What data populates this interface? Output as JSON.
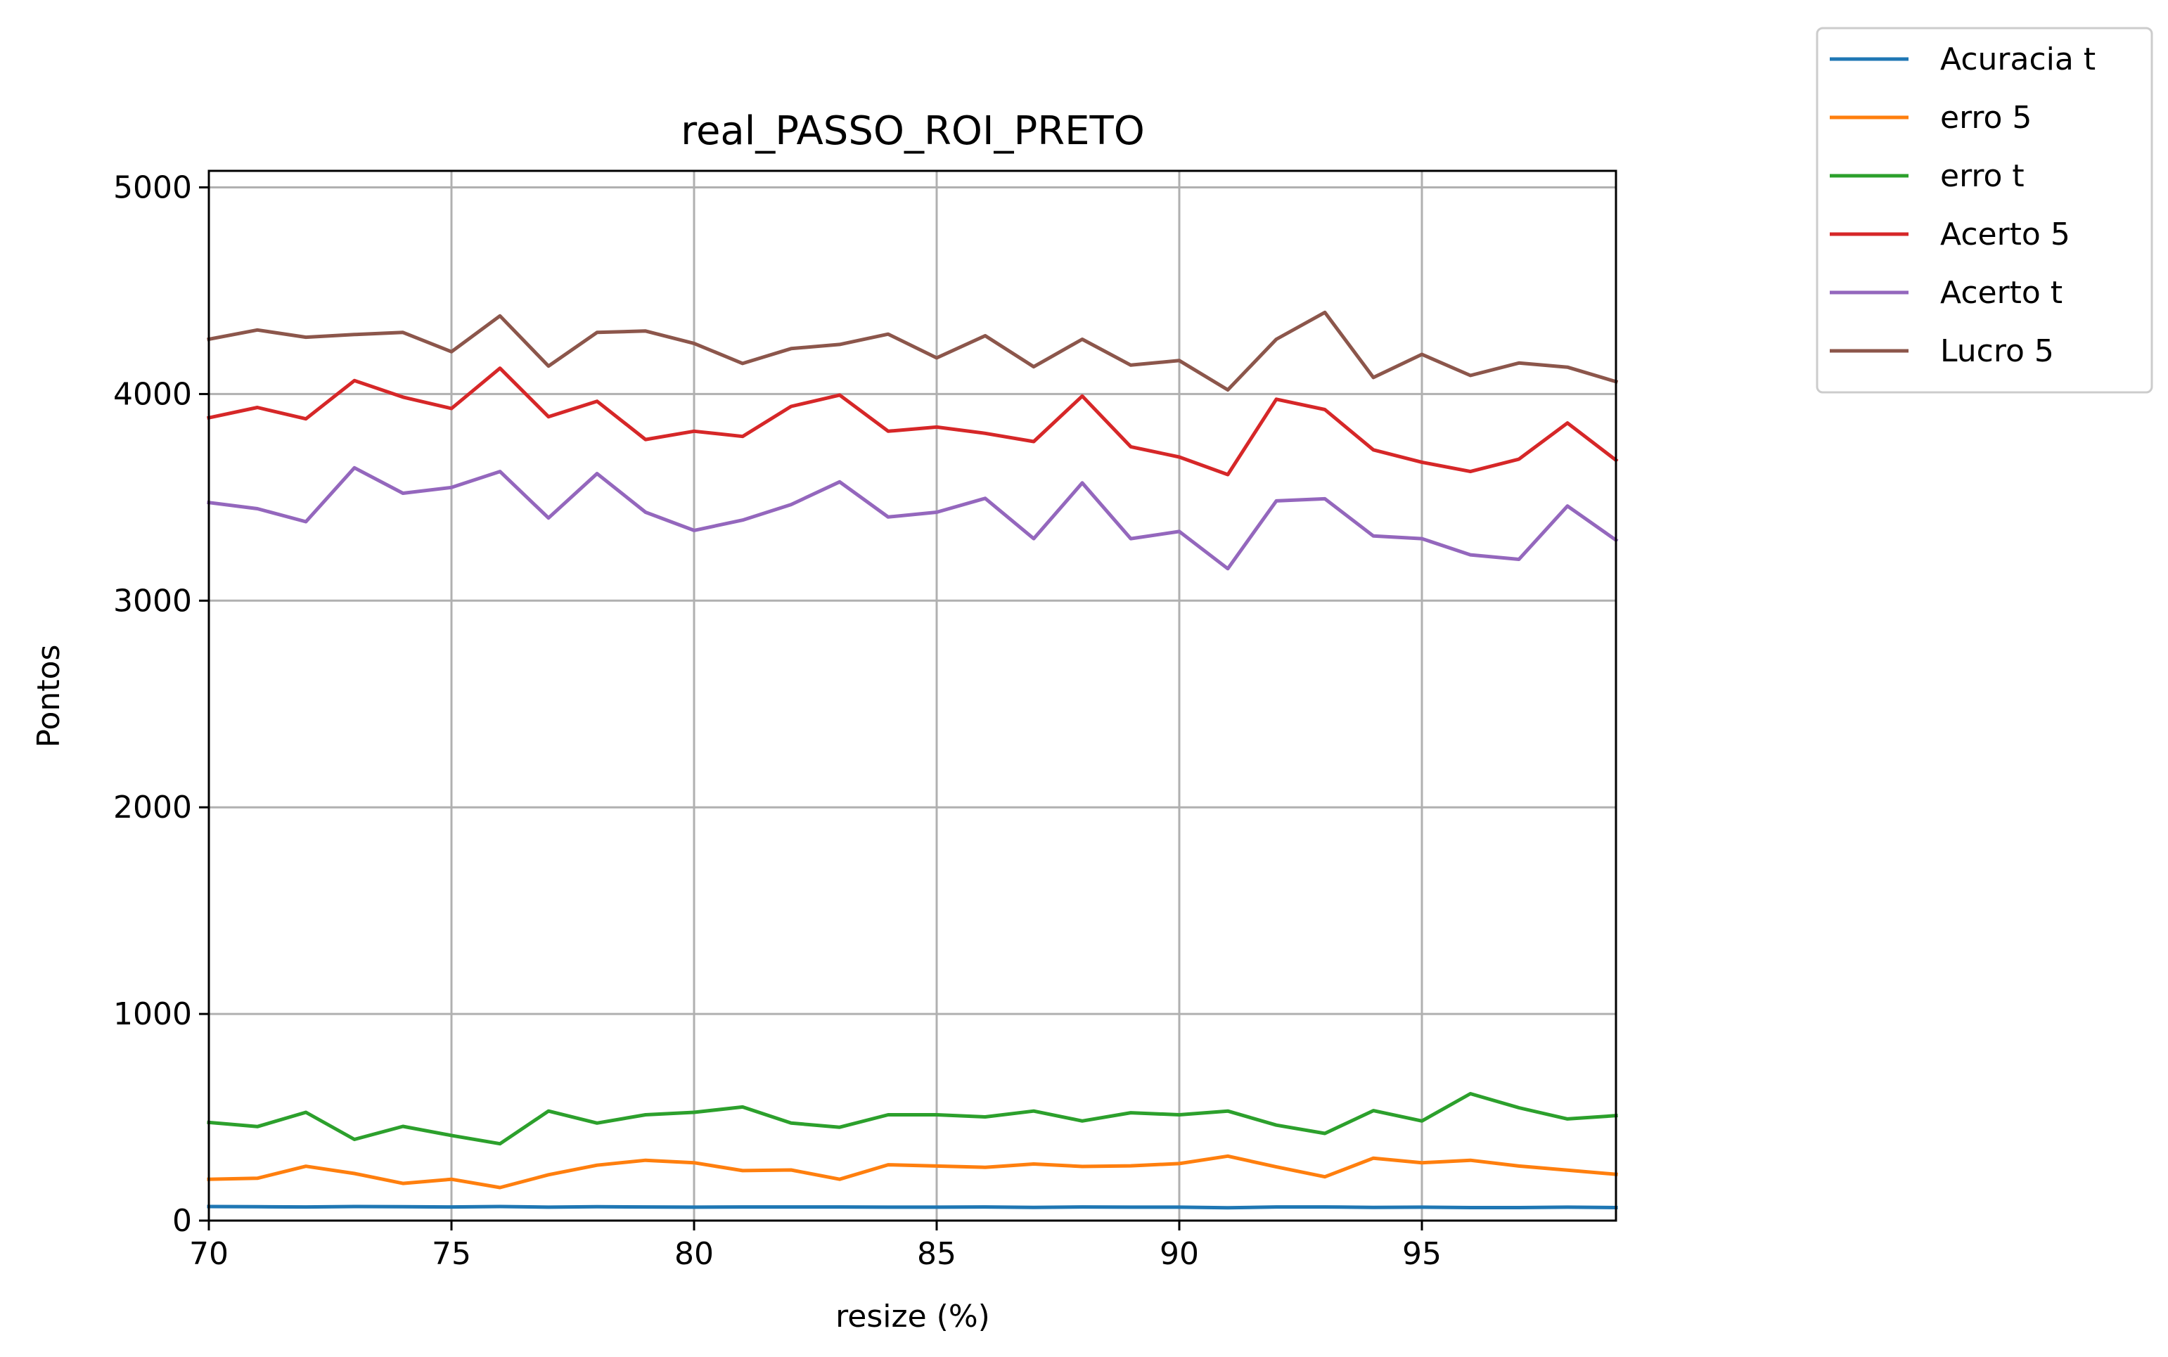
{
  "chart_data": {
    "type": "line",
    "title": "real_PASSO_ROI_PRETO",
    "xlabel": "resize (%)",
    "ylabel": "Pontos",
    "xlim": [
      70,
      99
    ],
    "ylim": [
      0,
      5080
    ],
    "xticks": [
      70,
      75,
      80,
      85,
      90,
      95
    ],
    "yticks": [
      0,
      1000,
      2000,
      3000,
      4000,
      5000
    ],
    "grid": true,
    "legend_position": "outside-top-right",
    "x": [
      70,
      71,
      72,
      73,
      74,
      75,
      76,
      77,
      78,
      79,
      80,
      81,
      82,
      83,
      84,
      85,
      86,
      87,
      88,
      89,
      90,
      91,
      92,
      93,
      94,
      95,
      96,
      97,
      98,
      99
    ],
    "series": [
      {
        "name": "Acuracia t",
        "color": "#1f77b4",
        "values": [
          68,
          67,
          66,
          68,
          67,
          66,
          68,
          65,
          67,
          66,
          65,
          66,
          66,
          66,
          65,
          65,
          66,
          64,
          66,
          65,
          65,
          62,
          66,
          66,
          64,
          65,
          63,
          63,
          65,
          63
        ]
      },
      {
        "name": "erro 5",
        "color": "#ff7f0e",
        "values": [
          200,
          205,
          263,
          228,
          180,
          200,
          160,
          222,
          268,
          292,
          280,
          242,
          245,
          200,
          270,
          264,
          258,
          274,
          262,
          265,
          276,
          312,
          260,
          212,
          302,
          280,
          292,
          264,
          244,
          224
        ]
      },
      {
        "name": "erro t",
        "color": "#2ca02c",
        "values": [
          475,
          455,
          524,
          393,
          456,
          412,
          372,
          530,
          472,
          512,
          524,
          550,
          472,
          452,
          512,
          512,
          502,
          530,
          482,
          522,
          512,
          530,
          462,
          422,
          532,
          482,
          614,
          546,
          492,
          508
        ]
      },
      {
        "name": "Acerto 5",
        "color": "#d62728",
        "values": [
          3885,
          3935,
          3880,
          4065,
          3985,
          3930,
          4125,
          3890,
          3965,
          3780,
          3820,
          3795,
          3940,
          3995,
          3820,
          3840,
          3810,
          3770,
          3990,
          3745,
          3695,
          3610,
          3975,
          3925,
          3730,
          3670,
          3625,
          3685,
          3860,
          3680
        ]
      },
      {
        "name": "Acerto t",
        "color": "#9467bd",
        "values": [
          3475,
          3445,
          3382,
          3643,
          3520,
          3548,
          3625,
          3400,
          3615,
          3428,
          3340,
          3390,
          3465,
          3575,
          3405,
          3428,
          3495,
          3300,
          3570,
          3300,
          3335,
          3155,
          3483,
          3493,
          3313,
          3300,
          3222,
          3200,
          3458,
          3293
        ]
      },
      {
        "name": "Lucro 5",
        "color": "#8c564b",
        "values": [
          4265,
          4310,
          4275,
          4288,
          4298,
          4205,
          4378,
          4135,
          4298,
          4305,
          4245,
          4148,
          4220,
          4240,
          4290,
          4175,
          4282,
          4132,
          4265,
          4140,
          4162,
          4020,
          4265,
          4395,
          4080,
          4192,
          4090,
          4150,
          4130,
          4060
        ]
      }
    ]
  }
}
